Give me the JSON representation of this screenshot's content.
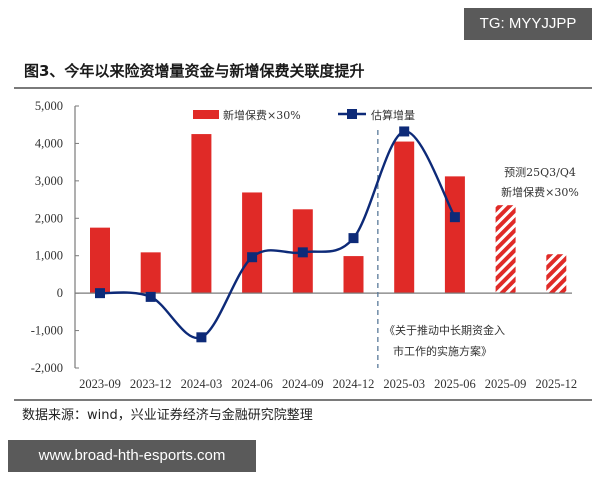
{
  "watermarks": {
    "top": "TG: MYYJJPP",
    "bottom": "www.broad-hth-esports.com"
  },
  "figure": {
    "title": "图3、今年以来险资增量资金与新增保费关联度提升",
    "source": "数据来源：wind，兴业证券经济与金融研究院整理"
  },
  "colors": {
    "bar": "#e02a27",
    "line": "#0d2a78",
    "axis": "#7a7a7a"
  },
  "chart_data": {
    "type": "bar+line",
    "title": "图3、今年以来险资增量资金与新增保费关联度提升",
    "categories": [
      "2023-09",
      "2023-12",
      "2024-03",
      "2024-06",
      "2024-09",
      "2024-12",
      "2025-03",
      "2025-06",
      "2025-09",
      "2025-12"
    ],
    "series": [
      {
        "name": "新增保费×30%",
        "type": "bar",
        "values": [
          1750,
          1090,
          4250,
          2690,
          2240,
          990,
          4050,
          3120,
          2350,
          1040
        ],
        "hatched_forecast_indices": [
          8,
          9
        ]
      },
      {
        "name": "估算增量",
        "type": "line",
        "marker": "square",
        "smooth": true,
        "values": [
          0,
          -100,
          -1180,
          960,
          1090,
          1470,
          4320,
          2030,
          null,
          null
        ]
      }
    ],
    "y_ticks": [
      "5,000",
      "4,000",
      "3,000",
      "2,000",
      "1,000",
      "0",
      "-1,000",
      "-2,000"
    ],
    "ylim": [
      -2000,
      5000
    ],
    "xlabel": "",
    "ylabel": "",
    "grid": false,
    "legend_position": "top",
    "annotations": [
      {
        "text_lines": [
          "预测25Q3/Q4",
          "新增保费×30%"
        ],
        "anchor": "2025-09"
      },
      {
        "text_lines": [
          "《关于推动中长期资金入",
          "市工作的实施方案》"
        ],
        "anchor": "between 2024-12 and 2025-03, dashed vertical line"
      }
    ]
  }
}
